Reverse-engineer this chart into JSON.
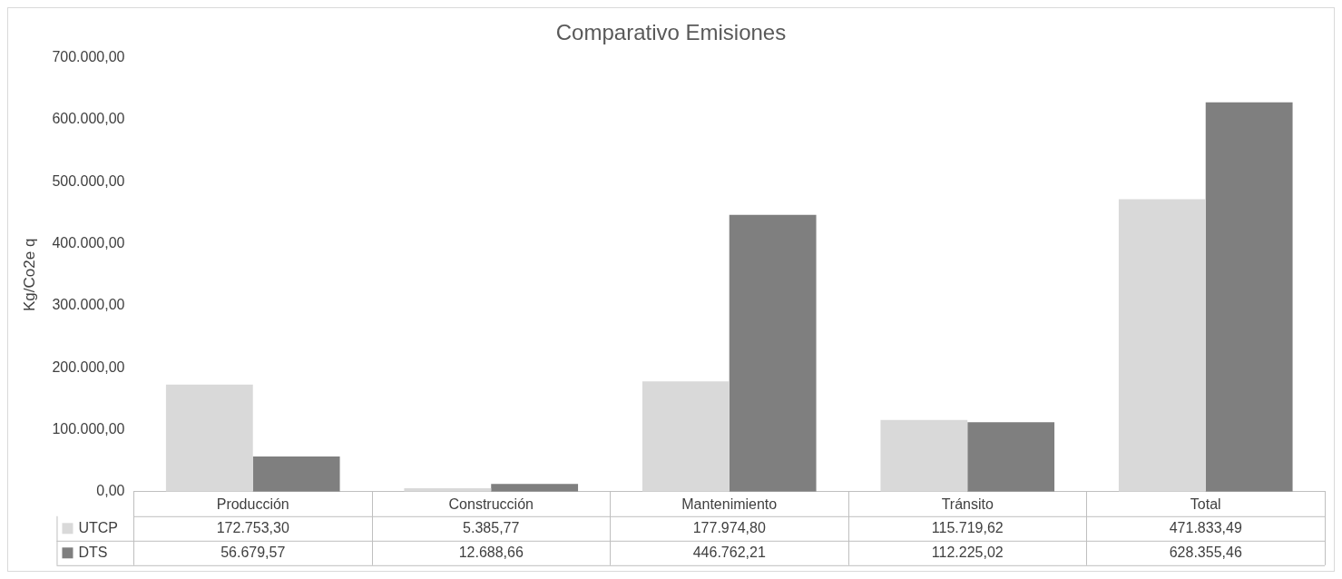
{
  "chart_data": {
    "type": "bar",
    "title": "Comparativo Emisiones",
    "ylabel": "Kg/Co2e q",
    "categories": [
      "Producción",
      "Construcción",
      "Mantenimiento",
      "Tránsito",
      "Total"
    ],
    "series": [
      {
        "name": "UTCP",
        "color": "#d9d9d9",
        "values": [
          172753.3,
          5385.77,
          177974.8,
          115719.62,
          471833.49
        ],
        "value_labels": [
          "172.753,30",
          "5.385,77",
          "177.974,80",
          "115.719,62",
          "471.833,49"
        ]
      },
      {
        "name": "DTS",
        "color": "#7f7f7f",
        "values": [
          56679.57,
          12688.66,
          446762.21,
          112225.02,
          628355.46
        ],
        "value_labels": [
          "56.679,57",
          "12.688,66",
          "446.762,21",
          "112.225,02",
          "628.355,46"
        ]
      }
    ],
    "ylim": [
      0,
      700000
    ],
    "yticks": [
      {
        "value": 0,
        "label": "0,00"
      },
      {
        "value": 100000,
        "label": "100.000,00"
      },
      {
        "value": 200000,
        "label": "200.000,00"
      },
      {
        "value": 300000,
        "label": "300.000,00"
      },
      {
        "value": 400000,
        "label": "400.000,00"
      },
      {
        "value": 500000,
        "label": "500.000,00"
      },
      {
        "value": 600000,
        "label": "600.000,00"
      },
      {
        "value": 700000,
        "label": "700.000,00"
      }
    ],
    "grid": false,
    "legend": "bottom"
  }
}
